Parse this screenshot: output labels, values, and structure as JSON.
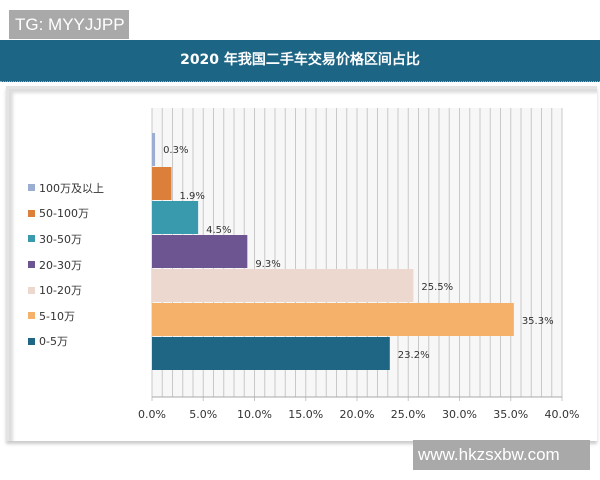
{
  "watermark_top": "TG: MYYJJPP",
  "watermark_bottom": "www.hkzsxbw.com",
  "chart_data": {
    "type": "bar",
    "orientation": "horizontal",
    "title": "2020 年我国二手车交易价格区间占比",
    "categories": [
      "100万及以上",
      "50-100万",
      "30-50万",
      "20-30万",
      "10-20万",
      "5-10万",
      "0-5万"
    ],
    "values": [
      0.3,
      1.9,
      4.5,
      9.3,
      25.5,
      35.3,
      23.2
    ],
    "data_labels": [
      "0.3%",
      "1.9%",
      "4.5%",
      "9.3%",
      "25.5%",
      "35.3%",
      "23.2%"
    ],
    "colors": [
      "#9badd0",
      "#dc7f3a",
      "#3a9aad",
      "#6c5591",
      "#ecd8cf",
      "#f5b06a",
      "#1e6683"
    ],
    "xlim": [
      0,
      40
    ],
    "xticks": [
      "0.0%",
      "5.0%",
      "10.0%",
      "15.0%",
      "20.0%",
      "25.0%",
      "30.0%",
      "35.0%",
      "40.0%"
    ],
    "grid": true,
    "legend": "left"
  }
}
